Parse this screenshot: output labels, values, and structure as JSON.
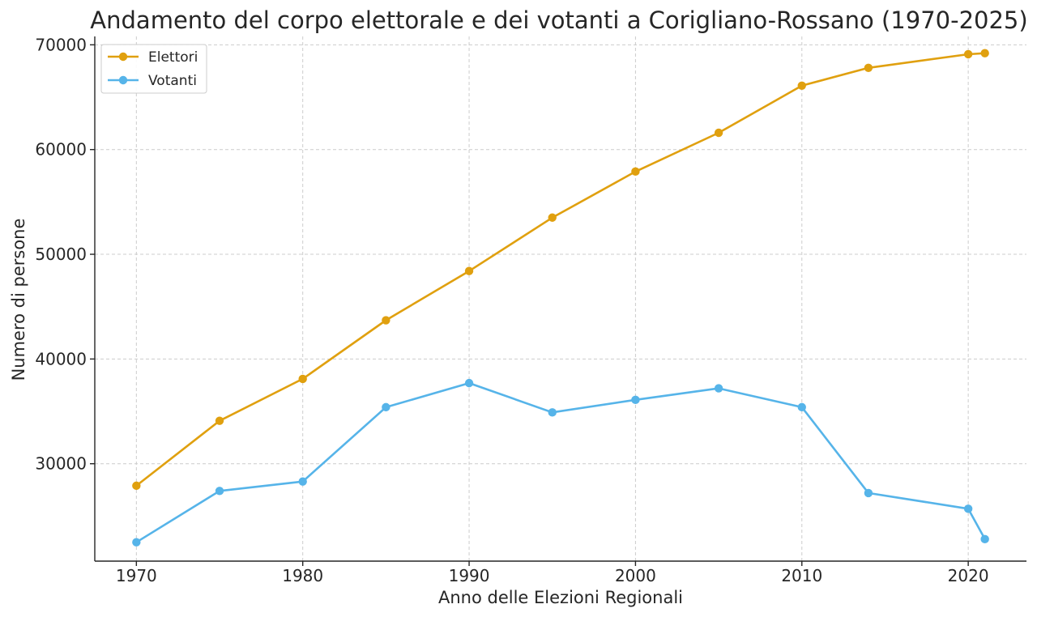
{
  "chart_data": {
    "type": "line",
    "title": "Andamento del corpo elettorale e dei votanti a Corigliano-Rossano (1970-2025)",
    "xlabel": "Anno delle Elezioni Regionali",
    "ylabel": "Numero di persone",
    "xlim": [
      1967.5,
      2023.5
    ],
    "ylim": [
      20700,
      70800
    ],
    "xticks": [
      1970,
      1980,
      1990,
      2000,
      2010,
      2020
    ],
    "yticks": [
      30000,
      40000,
      50000,
      60000,
      70000
    ],
    "grid": true,
    "legend_position": "top-left",
    "x": [
      1970,
      1975,
      1980,
      1985,
      1990,
      1995,
      2000,
      2005,
      2010,
      2014,
      2020,
      2021
    ],
    "series": [
      {
        "name": "Elettori",
        "color": "#E0A00F",
        "values": [
          27900,
          34100,
          38100,
          43700,
          48400,
          53500,
          57900,
          61600,
          66100,
          67800,
          69100,
          69200
        ]
      },
      {
        "name": "Votanti",
        "color": "#56B4E9",
        "values": [
          22500,
          27400,
          28300,
          35400,
          37700,
          34900,
          36100,
          37200,
          35400,
          27200,
          25700,
          22800
        ]
      }
    ]
  }
}
